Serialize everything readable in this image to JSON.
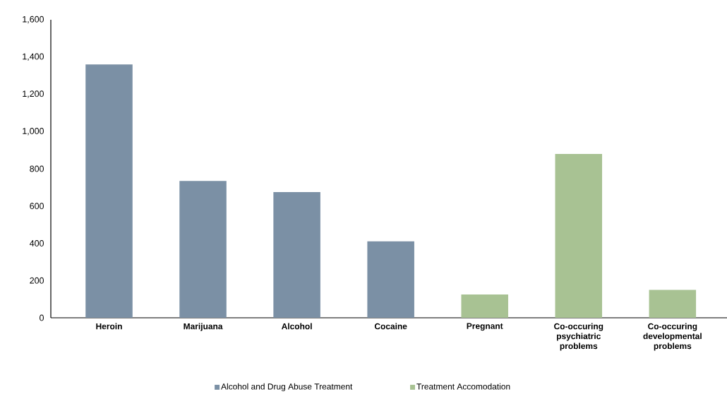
{
  "chart_data": {
    "type": "bar",
    "categories": [
      "Heroin",
      "Marijuana",
      "Alcohol",
      "Cocaine",
      "Pregnant",
      "Co-occuring psychiatric problems",
      "Co-occuring developmental problems"
    ],
    "series": [
      {
        "name": "Alcohol and Drug Abuse Treatment",
        "color": "#7b90a5",
        "values": [
          1360,
          735,
          675,
          410,
          null,
          null,
          null
        ]
      },
      {
        "name": "Treatment Accomodation",
        "color": "#a8c293",
        "values": [
          null,
          null,
          null,
          null,
          125,
          880,
          150
        ]
      }
    ],
    "ylim": [
      0,
      1600
    ],
    "yticks": [
      {
        "value": 0,
        "label": "0"
      },
      {
        "value": 200,
        "label": "200"
      },
      {
        "value": 400,
        "label": "400"
      },
      {
        "value": 600,
        "label": "600"
      },
      {
        "value": 800,
        "label": "800"
      },
      {
        "value": 1000,
        "label": "1,000"
      },
      {
        "value": 1200,
        "label": "1,200"
      },
      {
        "value": 1400,
        "label": "1,400"
      },
      {
        "value": 1600,
        "label": "1,600"
      }
    ],
    "grid": false,
    "legend": "bottom"
  }
}
